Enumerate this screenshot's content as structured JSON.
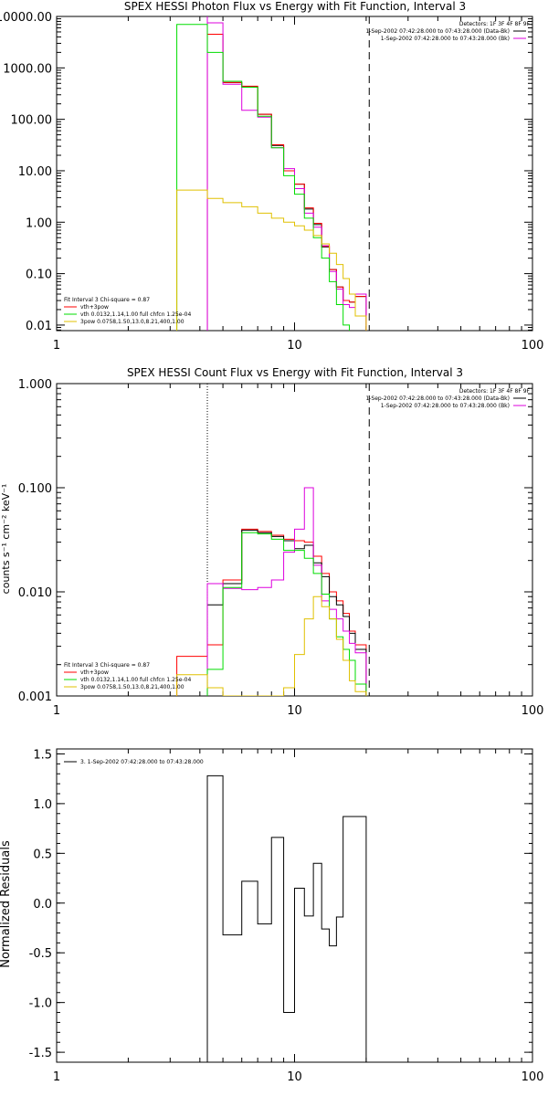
{
  "colors": {
    "black": "#000000",
    "red": "#ff0000",
    "green": "#00dd00",
    "magenta": "#dd00dd",
    "yellow": "#e0c000"
  },
  "chart_data": [
    {
      "type": "line",
      "title": "SPEX HESSI Photon Flux vs Energy with Fit Function, Interval 3",
      "xlabel": "",
      "ylabel": "",
      "xscale": "log",
      "yscale": "log",
      "xlim": [
        1,
        100
      ],
      "ylim": [
        0.0078,
        10000
      ],
      "xticks": [
        {
          "v": 1,
          "label": "1"
        },
        {
          "v": 10,
          "label": "10"
        },
        {
          "v": 100,
          "label": "100"
        }
      ],
      "yticks": [
        {
          "v": 10000,
          "label": "10000.00"
        },
        {
          "v": 1000,
          "label": "1000.00"
        },
        {
          "v": 100,
          "label": "100.00"
        },
        {
          "v": 10,
          "label": "10.00"
        },
        {
          "v": 1,
          "label": "1.00"
        },
        {
          "v": 0.1,
          "label": "0.10"
        },
        {
          "v": 0.01,
          "label": "0.01"
        }
      ],
      "vlines": [
        {
          "x": 4.3,
          "style": "solid",
          "color": "magenta"
        },
        {
          "x": 20.6,
          "style": "dashed",
          "color": "black"
        }
      ],
      "legend_tr": [
        {
          "text": "Detectors: 1F 3F 4F 8F 9F",
          "color": ""
        },
        {
          "text": "1-Sep-2002 07:42:28.000 to 07:43:28.000 (Data-Bk)",
          "color": "black"
        },
        {
          "text": "1-Sep-2002 07:42:28.000 to 07:43:28.000 (Bk)",
          "color": "magenta"
        }
      ],
      "legend_bl": [
        {
          "text": "Fit Interval 3   Chi-square = 0.87",
          "color": ""
        },
        {
          "text": "vth+3pow",
          "color": "red"
        },
        {
          "text": "vth 0.0132,1.14,1.00  full chfcn 1.25e-04",
          "color": "green"
        },
        {
          "text": "3pow 0.0758,1.50,13.0,8.21,400,1.00",
          "color": "yellow"
        }
      ],
      "series": [
        {
          "color": "black",
          "edges": [
            4.3,
            5,
            6,
            7,
            8,
            9,
            10,
            11,
            12,
            13,
            14,
            15,
            16,
            17,
            18,
            20
          ],
          "values": [
            4500,
            520,
            430,
            125,
            31,
            10,
            5.5,
            1.8,
            0.9,
            0.33,
            0.12,
            0.055,
            0.03,
            0.028,
            0.036
          ]
        },
        {
          "color": "red",
          "edges": [
            4.3,
            5,
            6,
            7,
            8,
            9,
            10,
            11,
            12,
            13,
            14,
            15,
            16,
            17,
            18,
            20
          ],
          "values": [
            4500,
            520,
            440,
            125,
            32,
            10,
            5.5,
            1.9,
            0.95,
            0.34,
            0.12,
            0.055,
            0.03,
            0.028,
            0.036
          ]
        },
        {
          "color": "magenta",
          "edges": [
            4.3,
            5,
            6,
            7,
            8,
            9,
            10,
            11,
            12,
            13,
            14,
            15,
            16,
            17,
            18,
            20
          ],
          "values": [
            7500,
            480,
            150,
            110,
            28,
            11,
            4.5,
            1.5,
            0.8,
            0.35,
            0.11,
            0.05,
            0.025,
            0.022,
            0.04
          ]
        },
        {
          "color": "green",
          "edges": [
            3.2,
            4.3,
            5,
            6,
            7,
            8,
            9,
            10,
            11,
            12,
            13,
            14,
            15,
            16,
            17
          ],
          "values": [
            7000,
            2000,
            550,
            420,
            115,
            28,
            8,
            3.5,
            1.2,
            0.5,
            0.2,
            0.07,
            0.025,
            0.01
          ]
        },
        {
          "color": "yellow",
          "edges": [
            3.2,
            4.3,
            5,
            6,
            7,
            8,
            9,
            10,
            11,
            12,
            13,
            14,
            15,
            16,
            17,
            18,
            20
          ],
          "values": [
            4.2,
            2.9,
            2.4,
            2.0,
            1.5,
            1.2,
            1.0,
            0.85,
            0.7,
            0.55,
            0.38,
            0.25,
            0.15,
            0.08,
            0.04,
            0.015
          ]
        }
      ]
    },
    {
      "type": "line",
      "title": "SPEX HESSI Count Flux vs Energy with Fit Function, Interval 3",
      "xlabel": "",
      "ylabel": "counts s⁻¹ cm⁻² keV⁻¹",
      "xscale": "log",
      "yscale": "log",
      "xlim": [
        1,
        100
      ],
      "ylim": [
        0.001,
        1
      ],
      "xticks": [
        {
          "v": 1,
          "label": "1"
        },
        {
          "v": 10,
          "label": "10"
        },
        {
          "v": 100,
          "label": "100"
        }
      ],
      "yticks": [
        {
          "v": 1,
          "label": "1.000"
        },
        {
          "v": 0.1,
          "label": "0.100"
        },
        {
          "v": 0.01,
          "label": "0.010"
        },
        {
          "v": 0.001,
          "label": "0.001"
        }
      ],
      "vlines": [
        {
          "x": 4.3,
          "style": "dotted",
          "color": "black"
        },
        {
          "x": 20.6,
          "style": "dashed",
          "color": "black"
        }
      ],
      "legend_tr": [
        {
          "text": "Detectors: 1F 3F 4F 8F 9F",
          "color": ""
        },
        {
          "text": "1-Sep-2002 07:42:28.000 to 07:43:28.000 (Data-Bk)",
          "color": "black"
        },
        {
          "text": "1-Sep-2002 07:42:28.000 to 07:43:28.000 (Bk)",
          "color": "magenta"
        }
      ],
      "legend_bl": [
        {
          "text": "Fit Interval 3   Chi-square = 0.87",
          "color": ""
        },
        {
          "text": "vth+3pow",
          "color": "red"
        },
        {
          "text": "vth 0.0132,1.14,1.00  full chfcn 1.25e-04",
          "color": "green"
        },
        {
          "text": "3pow 0.0758,1.50,13.0,8.21,400,1.00",
          "color": "yellow"
        }
      ],
      "series": [
        {
          "color": "red",
          "edges": [
            3.2,
            4.3,
            5,
            6,
            7,
            8,
            9,
            10,
            11,
            12,
            13,
            14,
            15,
            16,
            17,
            18,
            20
          ],
          "values": [
            0.0024,
            0.0031,
            0.013,
            0.04,
            0.038,
            0.035,
            0.032,
            0.031,
            0.03,
            0.022,
            0.015,
            0.01,
            0.0082,
            0.0062,
            0.0042,
            0.0031
          ]
        },
        {
          "color": "black",
          "edges": [
            4.3,
            5,
            6,
            7,
            8,
            9,
            10,
            11,
            12,
            13,
            14,
            15,
            16,
            17,
            18,
            20
          ],
          "values": [
            0.0075,
            0.012,
            0.039,
            0.037,
            0.034,
            0.031,
            0.026,
            0.028,
            0.019,
            0.014,
            0.009,
            0.0075,
            0.0058,
            0.004,
            0.0028
          ]
        },
        {
          "color": "magenta",
          "edges": [
            4.3,
            5,
            6,
            7,
            8,
            9,
            10,
            11,
            12,
            13,
            14,
            15,
            16,
            17,
            18,
            20
          ],
          "values": [
            0.012,
            0.0108,
            0.0105,
            0.011,
            0.013,
            0.024,
            0.04,
            0.1,
            0.018,
            0.0082,
            0.0068,
            0.0055,
            0.0042,
            0.0032,
            0.0026
          ]
        },
        {
          "color": "green",
          "edges": [
            4.3,
            5,
            6,
            7,
            8,
            9,
            10,
            11,
            12,
            13,
            14,
            15,
            16,
            17,
            18,
            20
          ],
          "values": [
            0.0018,
            0.011,
            0.037,
            0.036,
            0.032,
            0.025,
            0.025,
            0.021,
            0.015,
            0.0095,
            0.0055,
            0.0037,
            0.0028,
            0.0022,
            0.0013
          ]
        },
        {
          "color": "yellow",
          "edges": [
            3.2,
            4.3,
            5,
            6,
            7,
            8,
            9,
            10,
            11,
            12,
            13,
            14,
            15,
            16,
            17,
            18,
            20
          ],
          "values": [
            0.0016,
            0.0012,
            0.0009,
            0.0008,
            0.0007,
            0.0009,
            0.0012,
            0.0025,
            0.0055,
            0.009,
            0.0072,
            0.0055,
            0.0035,
            0.0022,
            0.0014,
            0.0011
          ]
        }
      ]
    },
    {
      "type": "line",
      "title": "",
      "xlabel": "",
      "ylabel": "Normalized Residuals",
      "xscale": "log",
      "yscale": "linear",
      "xlim": [
        1,
        100
      ],
      "ylim": [
        -1.6,
        1.55
      ],
      "xticks": [
        {
          "v": 1,
          "label": "1"
        },
        {
          "v": 10,
          "label": "10"
        },
        {
          "v": 100,
          "label": "100"
        }
      ],
      "yticks": [
        {
          "v": 1.5,
          "label": "1.5"
        },
        {
          "v": 1.0,
          "label": "1.0"
        },
        {
          "v": 0.5,
          "label": "0.5"
        },
        {
          "v": 0.0,
          "label": "0.0"
        },
        {
          "v": -0.5,
          "label": "-0.5"
        },
        {
          "v": -1.0,
          "label": "-1.0"
        },
        {
          "v": -1.5,
          "label": "-1.5"
        }
      ],
      "vlines": [],
      "legend_tr": [],
      "legend_bl": [],
      "legend_tl": [
        {
          "text": "3.  1-Sep-2002 07:42:28.000 to 07:43:28.000",
          "color": "black"
        }
      ],
      "series": [
        {
          "color": "black",
          "edges": [
            4.3,
            5,
            6,
            7,
            8,
            9,
            10,
            11,
            12,
            13,
            14,
            15,
            16,
            17,
            18,
            20
          ],
          "values": [
            1.28,
            -0.32,
            0.22,
            -0.21,
            0.66,
            -1.1,
            0.15,
            -0.13,
            0.4,
            -0.26,
            -0.43,
            -0.14,
            0.87,
            0.87,
            0.87
          ]
        }
      ]
    }
  ]
}
